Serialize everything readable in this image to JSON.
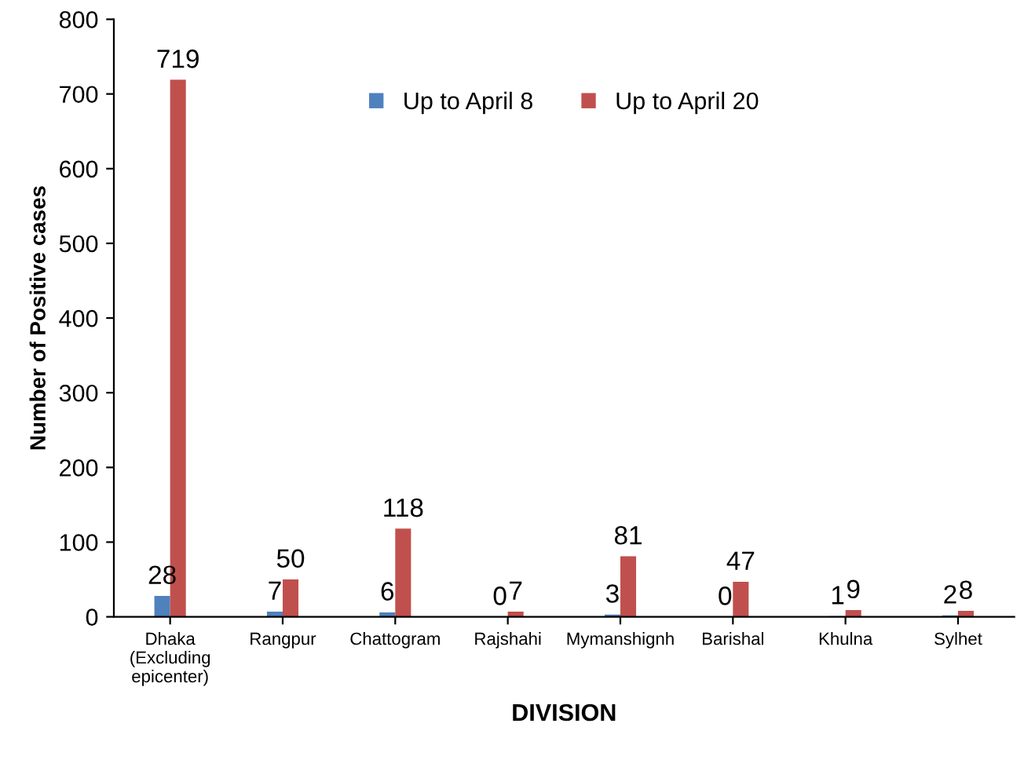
{
  "chart_data": {
    "type": "bar",
    "xlabel": "DIVISION",
    "ylabel": "Number of Positive cases",
    "categories": [
      "Dhaka\n(Excluding\nepicenter)",
      "Rangpur",
      "Chattogram",
      "Rajshahi",
      "Mymanshignh",
      "Barishal",
      "Khulna",
      "Sylhet"
    ],
    "series": [
      {
        "name": "Up to April 8",
        "color": "#4f81bd",
        "values": [
          28,
          7,
          6,
          0,
          3,
          0,
          1,
          2
        ]
      },
      {
        "name": "Up to April 20",
        "color": "#c0504d",
        "values": [
          719,
          50,
          118,
          7,
          81,
          47,
          9,
          8
        ]
      }
    ],
    "ylim": [
      0,
      800
    ],
    "yticks": [
      0,
      100,
      200,
      300,
      400,
      500,
      600,
      700,
      800
    ],
    "data_labels": true,
    "grid": false,
    "legend": "top"
  }
}
